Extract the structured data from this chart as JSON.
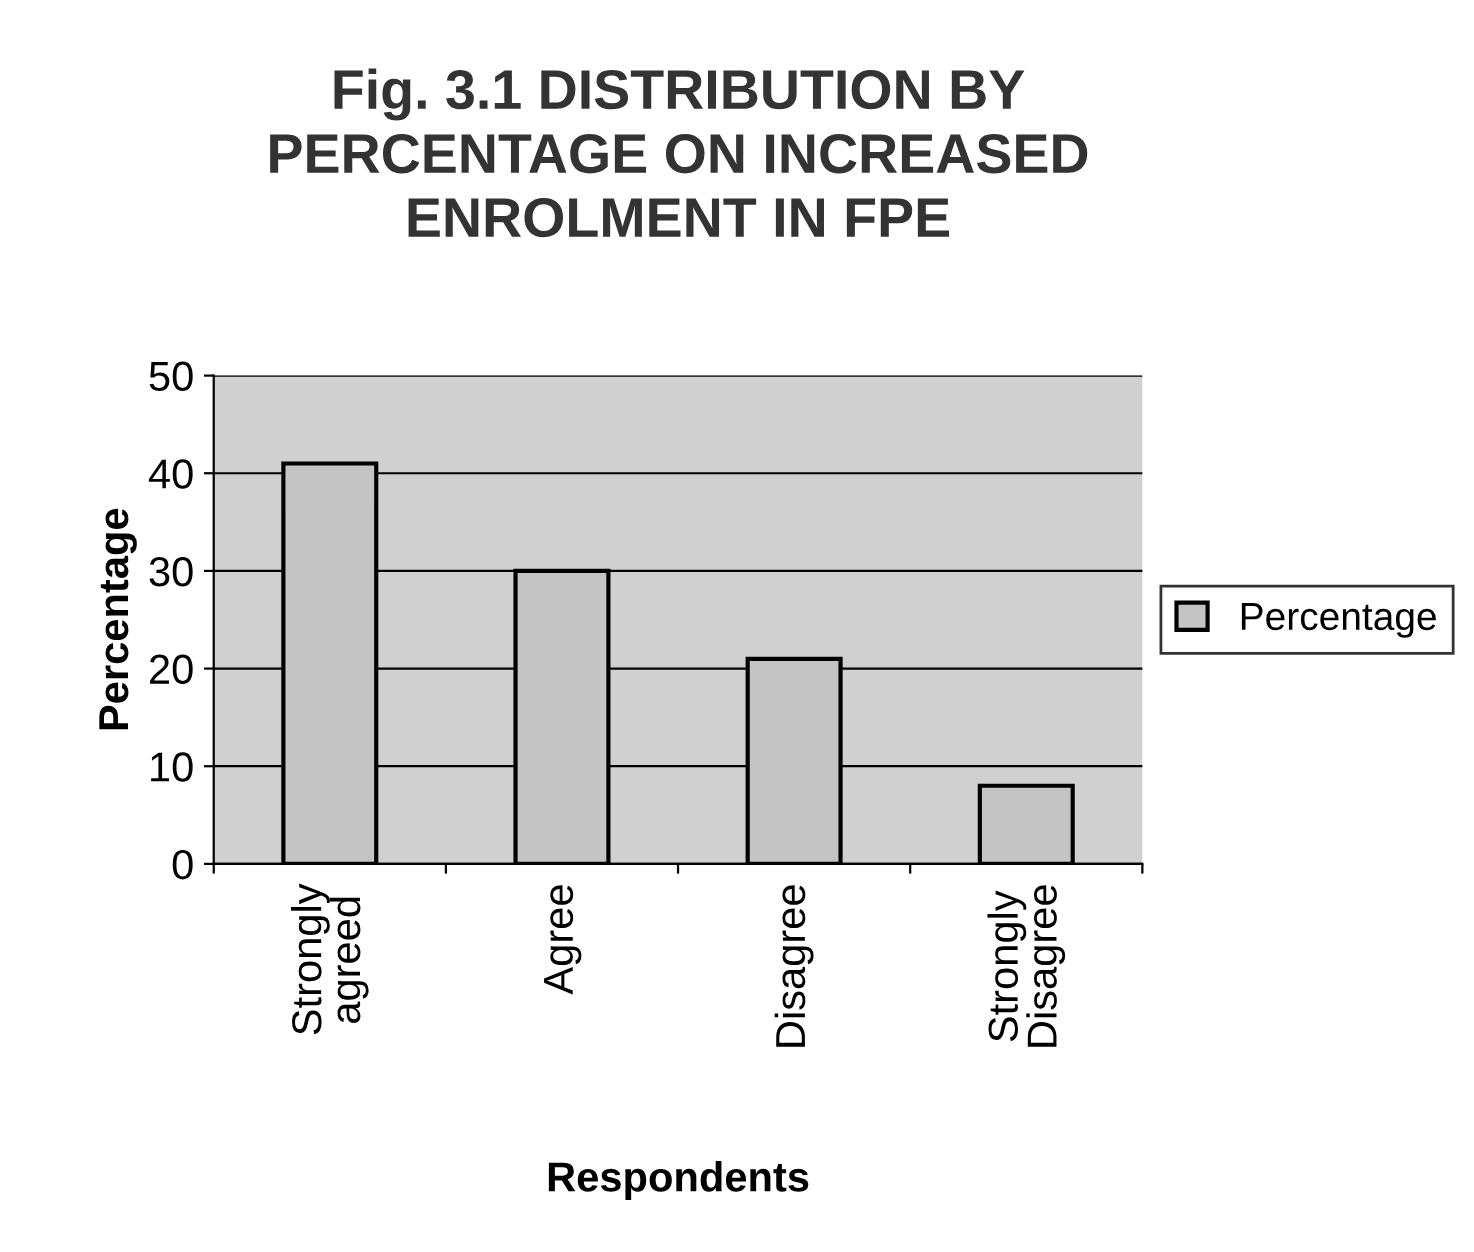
{
  "chart_data": {
    "type": "bar",
    "title": "Fig. 3.1 DISTRIBUTION BY\nPERCENTAGE ON INCREASED\nENROLMENT IN FPE",
    "xlabel": "Respondents",
    "ylabel": "Percentage",
    "categories": [
      "Strongly\nagreed",
      "Agree",
      "Disagree",
      "Strongly\nDisagree"
    ],
    "series": [
      {
        "name": "Percentage",
        "color": "#c4c4c4",
        "values": [
          41,
          30,
          21,
          8
        ]
      }
    ],
    "ylim": [
      0,
      50
    ],
    "yticks": [
      0,
      10,
      20,
      30,
      40,
      50
    ],
    "grid": "y",
    "legend": "right"
  }
}
